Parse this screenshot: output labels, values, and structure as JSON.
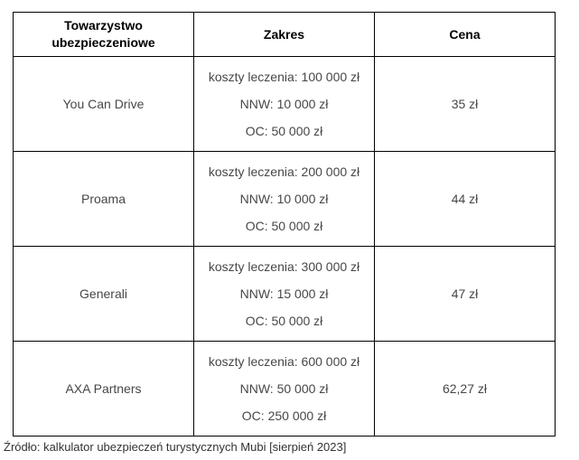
{
  "chart_data": {
    "type": "table",
    "columns": [
      "Towarzystwo ubezpieczeniowe",
      "Zakres",
      "Cena"
    ],
    "rows": [
      {
        "company": "You Can Drive",
        "scope_lines": [
          "koszty leczenia: 100 000 zł",
          "NNW: 10 000 zł",
          "OC: 50 000 zł"
        ],
        "price": "35 zł"
      },
      {
        "company": "Proama",
        "scope_lines": [
          "koszty leczenia: 200 000 zł",
          "NNW: 10 000 zł",
          "OC: 50 000 zł"
        ],
        "price": "44 zł"
      },
      {
        "company": "Generali",
        "scope_lines": [
          "koszty leczenia: 300 000 zł",
          "NNW: 15 000 zł",
          "OC: 50 000 zł"
        ],
        "price": "47 zł"
      },
      {
        "company": "AXA Partners",
        "scope_lines": [
          "koszty leczenia: 600 000 zł",
          "NNW: 50 000 zł",
          "OC: 250 000 zł"
        ],
        "price": "62,27 zł"
      }
    ],
    "source_note": "Źródło: kalkulator ubezpieczeń turystycznych Mubi [sierpień 2023]",
    "legend_position": "none",
    "grid": "full-borders"
  },
  "colors": {
    "border": "#000000",
    "header_text": "#000000",
    "body_text": "#474747",
    "source_text": "#333333",
    "background": "#ffffff"
  }
}
